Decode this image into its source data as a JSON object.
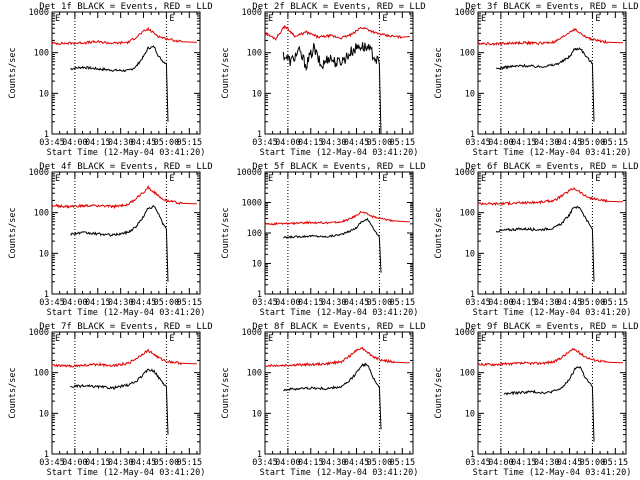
{
  "figure": {
    "rows": 3,
    "cols": 3
  },
  "chart_data": [
    {
      "type": "line",
      "title": "Det 1f BLACK = Events, RED = LLD",
      "xlabel": "Start Time (12-May-04 03:41:20)",
      "ylabel": "Counts/sec",
      "yscale": "log",
      "ylim": [
        1,
        1000
      ],
      "xlim": [
        "03:45",
        "05:22"
      ],
      "x_ticks": [
        "03:45",
        "04:00",
        "04:15",
        "04:30",
        "04:45",
        "05:00",
        "05:15"
      ],
      "y_ticks": [
        "1",
        "10",
        "100",
        "1000"
      ],
      "markers": [
        {
          "time": "04:00",
          "label": ""
        },
        {
          "time": "05:00",
          "label": "E"
        },
        {
          "time": "03:45",
          "label": "E"
        }
      ],
      "series": [
        {
          "name": "Events",
          "color": "#000000",
          "x": [
            "03:57",
            "04:05",
            "04:15",
            "04:25",
            "04:35",
            "04:40",
            "04:45",
            "04:48",
            "04:52",
            "04:55",
            "04:58",
            "05:00",
            "05:01"
          ],
          "y": [
            40,
            44,
            40,
            37,
            36,
            45,
            80,
            130,
            140,
            80,
            60,
            55,
            2
          ]
        },
        {
          "name": "LLD",
          "color": "#e00000",
          "x": [
            "03:45",
            "03:55",
            "04:05",
            "04:15",
            "04:25",
            "04:35",
            "04:40",
            "04:45",
            "04:48",
            "04:52",
            "04:55",
            "05:00",
            "05:10",
            "05:20"
          ],
          "y": [
            170,
            170,
            175,
            185,
            170,
            180,
            240,
            330,
            380,
            300,
            250,
            220,
            185,
            180
          ]
        }
      ]
    },
    {
      "type": "line",
      "title": "Det 2f BLACK = Events, RED = LLD",
      "xlabel": "Start Time (12-May-04 03:41:20)",
      "ylabel": "Counts/sec",
      "yscale": "log",
      "ylim": [
        1,
        1000
      ],
      "xlim": [
        "03:45",
        "05:22"
      ],
      "x_ticks": [
        "03:45",
        "04:00",
        "04:15",
        "04:30",
        "04:45",
        "05:00",
        "05:15"
      ],
      "y_ticks": [
        "1",
        "10",
        "100",
        "1000"
      ],
      "markers": [
        {
          "time": "04:00",
          "label": ""
        },
        {
          "time": "05:00",
          "label": "E"
        },
        {
          "time": "03:45",
          "label": "E"
        }
      ],
      "series": [
        {
          "name": "Events",
          "color": "#000000",
          "x": [
            "03:57",
            "04:02",
            "04:07",
            "04:12",
            "04:17",
            "04:22",
            "04:27",
            "04:32",
            "04:37",
            "04:42",
            "04:47",
            "04:52",
            "04:56",
            "05:00",
            "05:01"
          ],
          "y": [
            90,
            60,
            110,
            50,
            130,
            45,
            80,
            55,
            70,
            110,
            150,
            130,
            90,
            50,
            1
          ]
        },
        {
          "name": "LLD",
          "color": "#e00000",
          "x": [
            "03:45",
            "03:52",
            "03:58",
            "04:05",
            "04:12",
            "04:20",
            "04:28",
            "04:35",
            "04:42",
            "04:48",
            "04:52",
            "04:58",
            "05:05",
            "05:15",
            "05:20"
          ],
          "y": [
            300,
            220,
            450,
            250,
            320,
            240,
            260,
            230,
            280,
            420,
            380,
            300,
            260,
            240,
            250
          ]
        }
      ]
    },
    {
      "type": "line",
      "title": "Det 3f BLACK = Events, RED = LLD",
      "xlabel": "Start Time (12-May-04 03:41:20)",
      "ylabel": "Counts/sec",
      "yscale": "log",
      "ylim": [
        1,
        1000
      ],
      "xlim": [
        "03:45",
        "05:22"
      ],
      "x_ticks": [
        "03:45",
        "04:00",
        "04:15",
        "04:30",
        "04:45",
        "05:00",
        "05:15"
      ],
      "y_ticks": [
        "1",
        "10",
        "100",
        "1000"
      ],
      "markers": [
        {
          "time": "04:00",
          "label": ""
        },
        {
          "time": "05:00",
          "label": "E"
        },
        {
          "time": "03:45",
          "label": "E"
        }
      ],
      "series": [
        {
          "name": "Events",
          "color": "#000000",
          "x": [
            "03:57",
            "04:05",
            "04:15",
            "04:25",
            "04:35",
            "04:40",
            "04:45",
            "04:48",
            "04:52",
            "04:55",
            "04:58",
            "05:00",
            "05:01"
          ],
          "y": [
            40,
            45,
            48,
            45,
            50,
            60,
            80,
            120,
            130,
            90,
            65,
            55,
            2
          ]
        },
        {
          "name": "LLD",
          "color": "#e00000",
          "x": [
            "03:45",
            "03:55",
            "04:05",
            "04:15",
            "04:25",
            "04:35",
            "04:40",
            "04:45",
            "04:48",
            "04:52",
            "04:55",
            "05:00",
            "05:10",
            "05:20"
          ],
          "y": [
            170,
            165,
            170,
            175,
            170,
            180,
            230,
            320,
            380,
            300,
            250,
            210,
            180,
            175
          ]
        }
      ]
    },
    {
      "type": "line",
      "title": "Det 4f BLACK = Events, RED = LLD",
      "xlabel": "Start Time (12-May-04 03:41:20)",
      "ylabel": "Counts/sec",
      "yscale": "log",
      "ylim": [
        1,
        1000
      ],
      "xlim": [
        "03:45",
        "05:22"
      ],
      "x_ticks": [
        "03:45",
        "04:00",
        "04:15",
        "04:30",
        "04:45",
        "05:00",
        "05:15"
      ],
      "y_ticks": [
        "1",
        "10",
        "100",
        "1000"
      ],
      "markers": [
        {
          "time": "04:00",
          "label": ""
        },
        {
          "time": "05:00",
          "label": "E"
        },
        {
          "time": "03:45",
          "label": "E"
        }
      ],
      "series": [
        {
          "name": "Events",
          "color": "#000000",
          "x": [
            "03:57",
            "04:05",
            "04:15",
            "04:25",
            "04:35",
            "04:40",
            "04:45",
            "04:48",
            "04:52",
            "04:55",
            "04:58",
            "05:00",
            "05:01"
          ],
          "y": [
            30,
            32,
            30,
            28,
            33,
            45,
            80,
            130,
            140,
            90,
            50,
            40,
            2
          ]
        },
        {
          "name": "LLD",
          "color": "#e00000",
          "x": [
            "03:45",
            "03:55",
            "04:05",
            "04:15",
            "04:25",
            "04:35",
            "04:40",
            "04:45",
            "04:48",
            "04:52",
            "04:55",
            "05:00",
            "05:10",
            "05:20"
          ],
          "y": [
            150,
            140,
            145,
            150,
            140,
            160,
            220,
            320,
            420,
            320,
            250,
            200,
            170,
            165
          ]
        }
      ]
    },
    {
      "type": "line",
      "title": "Det 5f BLACK = Events, RED = LLD",
      "xlabel": "Start Time (12-May-04 03:41:20)",
      "ylabel": "Counts/sec",
      "yscale": "log",
      "ylim": [
        1,
        10000
      ],
      "xlim": [
        "03:45",
        "05:22"
      ],
      "x_ticks": [
        "03:45",
        "04:00",
        "04:15",
        "04:30",
        "04:45",
        "05:00",
        "05:15"
      ],
      "y_ticks": [
        "1",
        "10",
        "100",
        "1000",
        "10000"
      ],
      "markers": [
        {
          "time": "04:00",
          "label": ""
        },
        {
          "time": "05:00",
          "label": "E"
        },
        {
          "time": "03:45",
          "label": "E"
        }
      ],
      "series": [
        {
          "name": "Events",
          "color": "#000000",
          "x": [
            "03:57",
            "04:05",
            "04:15",
            "04:25",
            "04:35",
            "04:40",
            "04:45",
            "04:48",
            "04:52",
            "04:55",
            "04:58",
            "05:00",
            "05:01"
          ],
          "y": [
            70,
            75,
            80,
            75,
            90,
            110,
            150,
            230,
            280,
            180,
            100,
            70,
            5
          ]
        },
        {
          "name": "LLD",
          "color": "#e00000",
          "x": [
            "03:45",
            "03:55",
            "04:05",
            "04:15",
            "04:25",
            "04:35",
            "04:40",
            "04:45",
            "04:48",
            "04:52",
            "04:55",
            "05:00",
            "05:10",
            "05:20"
          ],
          "y": [
            200,
            200,
            210,
            220,
            215,
            230,
            280,
            380,
            500,
            420,
            350,
            300,
            250,
            230
          ]
        }
      ]
    },
    {
      "type": "line",
      "title": "Det 6f BLACK = Events, RED = LLD",
      "xlabel": "Start Time (12-May-04 03:41:20)",
      "ylabel": "Counts/sec",
      "yscale": "log",
      "ylim": [
        1,
        1000
      ],
      "xlim": [
        "03:45",
        "05:22"
      ],
      "x_ticks": [
        "03:45",
        "04:00",
        "04:15",
        "04:30",
        "04:45",
        "05:00",
        "05:15"
      ],
      "y_ticks": [
        "1",
        "10",
        "100",
        "1000"
      ],
      "markers": [
        {
          "time": "04:00",
          "label": ""
        },
        {
          "time": "05:00",
          "label": "E"
        },
        {
          "time": "03:45",
          "label": "E"
        }
      ],
      "series": [
        {
          "name": "Events",
          "color": "#000000",
          "x": [
            "03:57",
            "04:05",
            "04:15",
            "04:25",
            "04:35",
            "04:40",
            "04:45",
            "04:48",
            "04:52",
            "04:55",
            "04:58",
            "05:00",
            "05:01"
          ],
          "y": [
            35,
            38,
            40,
            38,
            42,
            55,
            90,
            140,
            130,
            80,
            50,
            40,
            2
          ]
        },
        {
          "name": "LLD",
          "color": "#e00000",
          "x": [
            "03:45",
            "03:55",
            "04:05",
            "04:15",
            "04:25",
            "04:35",
            "04:40",
            "04:45",
            "04:48",
            "04:52",
            "04:55",
            "05:00",
            "05:10",
            "05:20"
          ],
          "y": [
            170,
            165,
            170,
            175,
            180,
            200,
            260,
            350,
            400,
            320,
            260,
            220,
            190,
            185
          ]
        }
      ]
    },
    {
      "type": "line",
      "title": "Det 7f BLACK = Events, RED = LLD",
      "xlabel": "Start Time (12-May-04 03:41:20)",
      "ylabel": "Counts/sec",
      "yscale": "log",
      "ylim": [
        1,
        1000
      ],
      "xlim": [
        "03:45",
        "05:22"
      ],
      "x_ticks": [
        "03:45",
        "04:00",
        "04:15",
        "04:30",
        "04:45",
        "05:00",
        "05:15"
      ],
      "y_ticks": [
        "1",
        "10",
        "100",
        "1000"
      ],
      "markers": [
        {
          "time": "04:00",
          "label": ""
        },
        {
          "time": "05:00",
          "label": "E"
        },
        {
          "time": "03:45",
          "label": "E"
        }
      ],
      "series": [
        {
          "name": "Events",
          "color": "#000000",
          "x": [
            "03:57",
            "04:05",
            "04:15",
            "04:25",
            "04:35",
            "04:40",
            "04:45",
            "04:48",
            "04:52",
            "04:55",
            "04:58",
            "05:00",
            "05:01"
          ],
          "y": [
            45,
            47,
            45,
            42,
            50,
            60,
            90,
            120,
            110,
            75,
            55,
            45,
            3
          ]
        },
        {
          "name": "LLD",
          "color": "#e00000",
          "x": [
            "03:45",
            "03:55",
            "04:05",
            "04:15",
            "04:25",
            "04:35",
            "04:40",
            "04:45",
            "04:48",
            "04:52",
            "04:55",
            "05:00",
            "05:10",
            "05:20"
          ],
          "y": [
            150,
            145,
            150,
            160,
            150,
            170,
            220,
            300,
            350,
            280,
            230,
            190,
            170,
            165
          ]
        }
      ]
    },
    {
      "type": "line",
      "title": "Det 8f BLACK = Events, RED = LLD",
      "xlabel": "Start Time (12-May-04 03:41:20)",
      "ylabel": "Counts/sec",
      "yscale": "log",
      "ylim": [
        1,
        1000
      ],
      "xlim": [
        "03:45",
        "05:22"
      ],
      "x_ticks": [
        "03:45",
        "04:00",
        "04:15",
        "04:30",
        "04:45",
        "05:00",
        "05:15"
      ],
      "y_ticks": [
        "1",
        "10",
        "100",
        "1000"
      ],
      "markers": [
        {
          "time": "04:00",
          "label": ""
        },
        {
          "time": "05:00",
          "label": "E"
        },
        {
          "time": "03:45",
          "label": "E"
        }
      ],
      "series": [
        {
          "name": "Events",
          "color": "#000000",
          "x": [
            "03:57",
            "04:05",
            "04:15",
            "04:25",
            "04:35",
            "04:40",
            "04:45",
            "04:48",
            "04:52",
            "04:55",
            "04:58",
            "05:00",
            "05:01"
          ],
          "y": [
            38,
            40,
            42,
            40,
            45,
            60,
            100,
            150,
            160,
            90,
            55,
            45,
            4
          ]
        },
        {
          "name": "LLD",
          "color": "#e00000",
          "x": [
            "03:45",
            "03:55",
            "04:05",
            "04:15",
            "04:25",
            "04:35",
            "04:40",
            "04:45",
            "04:48",
            "04:52",
            "04:55",
            "05:00",
            "05:10",
            "05:20"
          ],
          "y": [
            150,
            150,
            155,
            160,
            165,
            185,
            250,
            350,
            420,
            330,
            260,
            210,
            180,
            175
          ]
        }
      ]
    },
    {
      "type": "line",
      "title": "Det 9f BLACK = Events, RED = LLD",
      "xlabel": "Start Time (12-May-04 03:41:20)",
      "ylabel": "Counts/sec",
      "yscale": "log",
      "ylim": [
        1,
        1000
      ],
      "xlim": [
        "03:45",
        "05:22"
      ],
      "x_ticks": [
        "03:45",
        "04:00",
        "04:15",
        "04:30",
        "04:45",
        "05:00",
        "05:15"
      ],
      "y_ticks": [
        "1",
        "10",
        "100",
        "1000"
      ],
      "markers": [
        {
          "time": "04:00",
          "label": ""
        },
        {
          "time": "05:00",
          "label": "E"
        },
        {
          "time": "03:45",
          "label": "E"
        }
      ],
      "series": [
        {
          "name": "Events",
          "color": "#000000",
          "x": [
            "04:02",
            "04:10",
            "04:20",
            "04:30",
            "04:38",
            "04:42",
            "04:46",
            "04:49",
            "04:52",
            "04:55",
            "04:58",
            "05:00",
            "05:01"
          ],
          "y": [
            30,
            32,
            34,
            32,
            38,
            50,
            80,
            130,
            140,
            80,
            55,
            45,
            2
          ]
        },
        {
          "name": "LLD",
          "color": "#e00000",
          "x": [
            "03:45",
            "03:55",
            "04:05",
            "04:15",
            "04:25",
            "04:35",
            "04:40",
            "04:45",
            "04:48",
            "04:52",
            "04:55",
            "05:00",
            "05:10",
            "05:20"
          ],
          "y": [
            160,
            160,
            165,
            170,
            170,
            185,
            240,
            330,
            380,
            300,
            250,
            210,
            180,
            175
          ]
        }
      ]
    }
  ]
}
